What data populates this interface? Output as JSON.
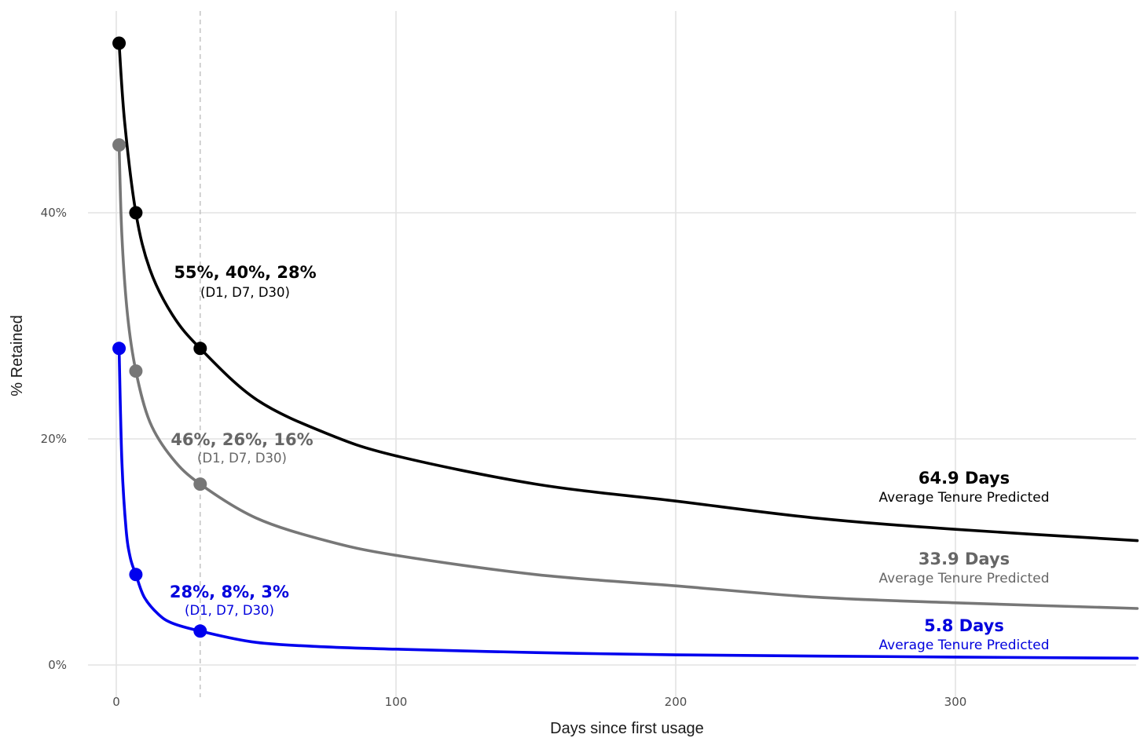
{
  "chart_data": {
    "type": "line",
    "xlabel": "Days since first usage",
    "ylabel": "% Retained",
    "xlim": [
      -10,
      365
    ],
    "ylim": [
      -2,
      58
    ],
    "x_ticks": [
      0,
      100,
      200,
      300
    ],
    "x_tick_labels": [
      "0",
      "100",
      "200",
      "300"
    ],
    "y_ticks": [
      0,
      20,
      40
    ],
    "y_tick_labels": [
      "0%",
      "20%",
      "40%"
    ],
    "reference_line_x": 30,
    "grid": true,
    "series": [
      {
        "key": "top",
        "color": "#000000",
        "label_color": "#000000",
        "points": [
          {
            "x": 1,
            "y": 55
          },
          {
            "x": 7,
            "y": 40
          },
          {
            "x": 30,
            "y": 28
          }
        ],
        "curve": [
          [
            1,
            55
          ],
          [
            3,
            48
          ],
          [
            7,
            40
          ],
          [
            12,
            35
          ],
          [
            20,
            31
          ],
          [
            30,
            28
          ],
          [
            50,
            23.5
          ],
          [
            75,
            20.5
          ],
          [
            100,
            18.5
          ],
          [
            150,
            16
          ],
          [
            200,
            14.5
          ],
          [
            250,
            13
          ],
          [
            300,
            12
          ],
          [
            365,
            11
          ]
        ],
        "annotation": {
          "values": "55%, 40%, 28%",
          "days": "(D1, D7, D30)"
        },
        "tenure": {
          "value": "64.9 Days",
          "caption": "Average Tenure Predicted"
        }
      },
      {
        "key": "middle",
        "color": "#777777",
        "label_color": "#666666",
        "points": [
          {
            "x": 1,
            "y": 46
          },
          {
            "x": 7,
            "y": 26
          },
          {
            "x": 30,
            "y": 16
          }
        ],
        "curve": [
          [
            1,
            46
          ],
          [
            2,
            38
          ],
          [
            4,
            31
          ],
          [
            7,
            26
          ],
          [
            12,
            21.5
          ],
          [
            20,
            18.3
          ],
          [
            30,
            16
          ],
          [
            50,
            13
          ],
          [
            75,
            11
          ],
          [
            100,
            9.7
          ],
          [
            150,
            8
          ],
          [
            200,
            7
          ],
          [
            250,
            6
          ],
          [
            300,
            5.5
          ],
          [
            365,
            5
          ]
        ],
        "annotation": {
          "values": "46%, 26%, 16%",
          "days": "(D1, D7, D30)"
        },
        "tenure": {
          "value": "33.9 Days",
          "caption": "Average Tenure Predicted"
        }
      },
      {
        "key": "bottom",
        "color": "#0000ee",
        "label_color": "#0000dd",
        "points": [
          {
            "x": 1,
            "y": 28
          },
          {
            "x": 7,
            "y": 8
          },
          {
            "x": 30,
            "y": 3
          }
        ],
        "curve": [
          [
            1,
            28
          ],
          [
            2,
            18
          ],
          [
            3.5,
            12
          ],
          [
            5,
            9.5
          ],
          [
            7,
            8
          ],
          [
            10,
            6
          ],
          [
            15,
            4.5
          ],
          [
            20,
            3.7
          ],
          [
            30,
            3
          ],
          [
            50,
            2
          ],
          [
            75,
            1.6
          ],
          [
            100,
            1.4
          ],
          [
            150,
            1.1
          ],
          [
            200,
            0.9
          ],
          [
            300,
            0.7
          ],
          [
            365,
            0.6
          ]
        ],
        "annotation": {
          "values": "28%, 8%, 3%",
          "days": "(D1, D7, D30)"
        },
        "tenure": {
          "value": "5.8 Days",
          "caption": "Average Tenure Predicted"
        }
      }
    ]
  }
}
